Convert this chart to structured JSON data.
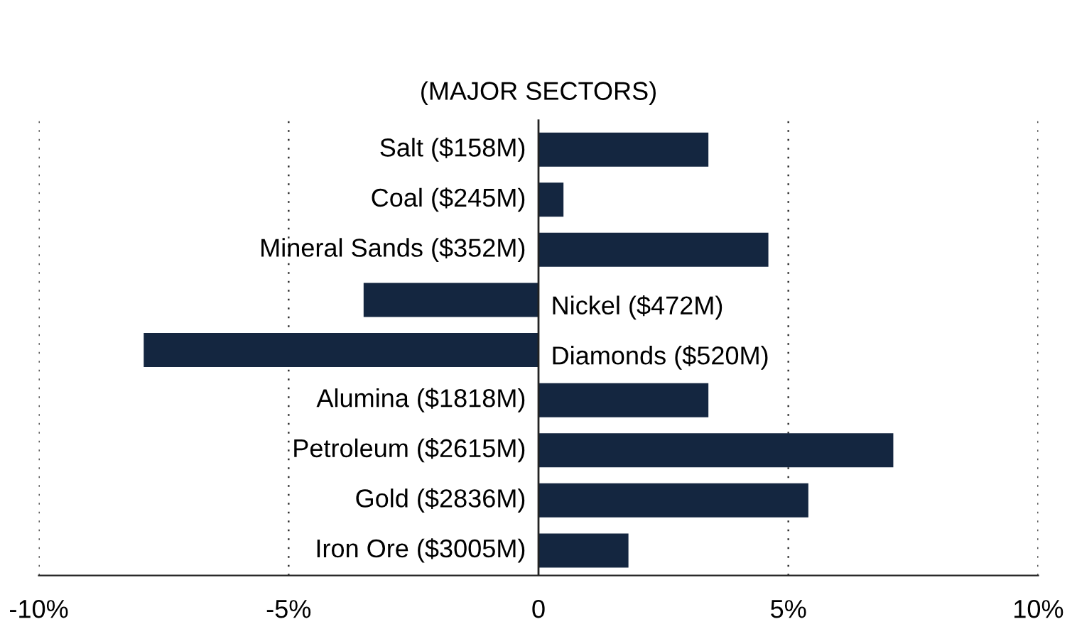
{
  "chart_data": {
    "type": "bar",
    "orientation": "horizontal",
    "title": "(MAJOR SECTORS)",
    "categories": [
      "Salt ($158M)",
      "Coal ($245M)",
      "Mineral Sands ($352M)",
      "Nickel ($472M)",
      "Diamonds ($520M)",
      "Alumina ($1818M)",
      "Petroleum ($2615M)",
      "Gold ($2836M)",
      "Iron Ore ($3005M)"
    ],
    "values": [
      3.4,
      0.5,
      4.6,
      -3.5,
      -7.9,
      3.4,
      7.1,
      5.4,
      1.8
    ],
    "color": "#142640",
    "xlim": [
      -10,
      10
    ],
    "xticks": [
      {
        "value": -10,
        "label": "-10%"
      },
      {
        "value": -5,
        "label": "-5%"
      },
      {
        "value": 0,
        "label": "0"
      },
      {
        "value": 5,
        "label": "5%"
      },
      {
        "value": 10,
        "label": "10%"
      }
    ],
    "grid": "x"
  }
}
